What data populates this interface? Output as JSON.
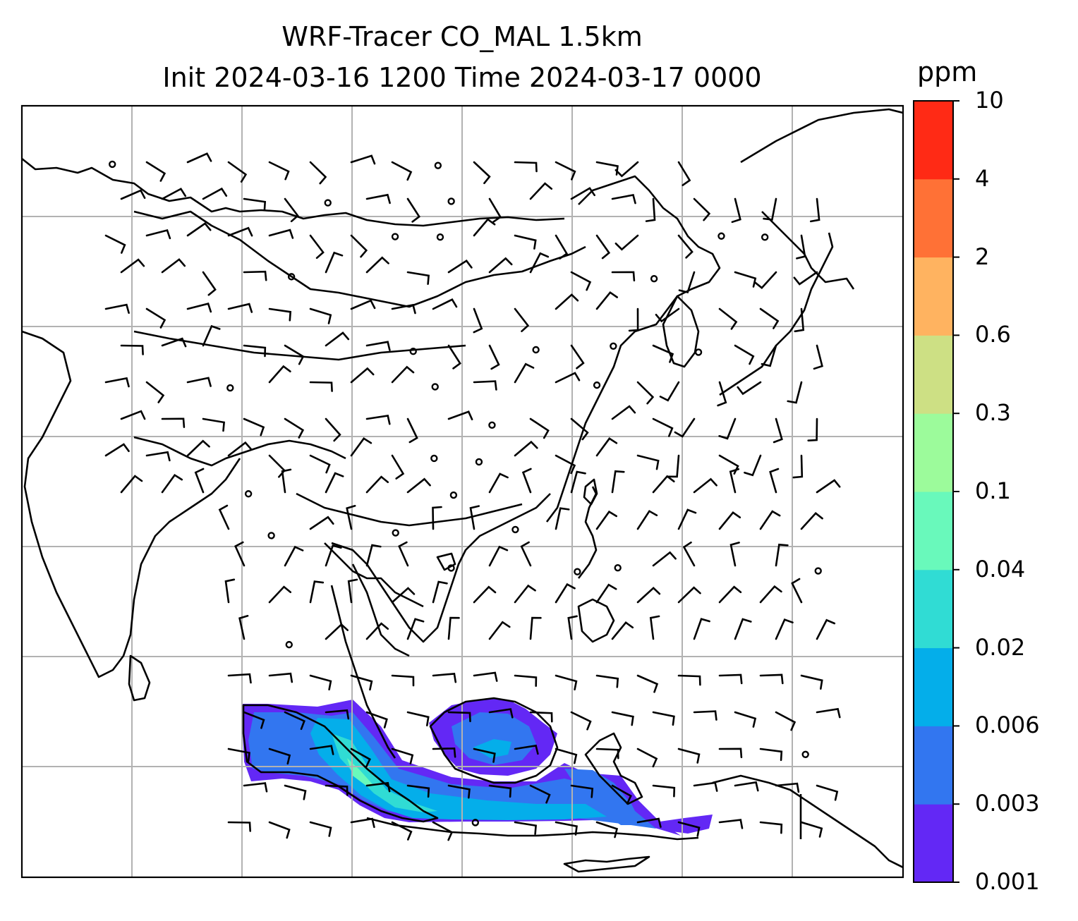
{
  "title": {
    "line1": "WRF-Tracer CO_MAL 1.5km",
    "line2": "Init 2024-03-16 1200 Time 2024-03-17 0000"
  },
  "colorbar": {
    "unit": "ppm",
    "levels": [
      "0.001",
      "0.003",
      "0.006",
      "0.02",
      "0.04",
      "0.1",
      "0.3",
      "0.6",
      "2",
      "4",
      "10"
    ],
    "colors": [
      "#6328f5",
      "#3276f0",
      "#04aeea",
      "#30dcd4",
      "#69f9bb",
      "#9cfb9b",
      "#cde084",
      "#ffb360",
      "#ff7136",
      "#ff2a15"
    ]
  },
  "map": {
    "gridlines": true,
    "features": [
      "coastlines",
      "country borders",
      "wind barbs",
      "CO tracer concentration shading"
    ],
    "plume": {
      "region": "Sumatra, Malay Peninsula and Borneo",
      "max_level": "0.04",
      "dominant_level": "0.006"
    }
  }
}
